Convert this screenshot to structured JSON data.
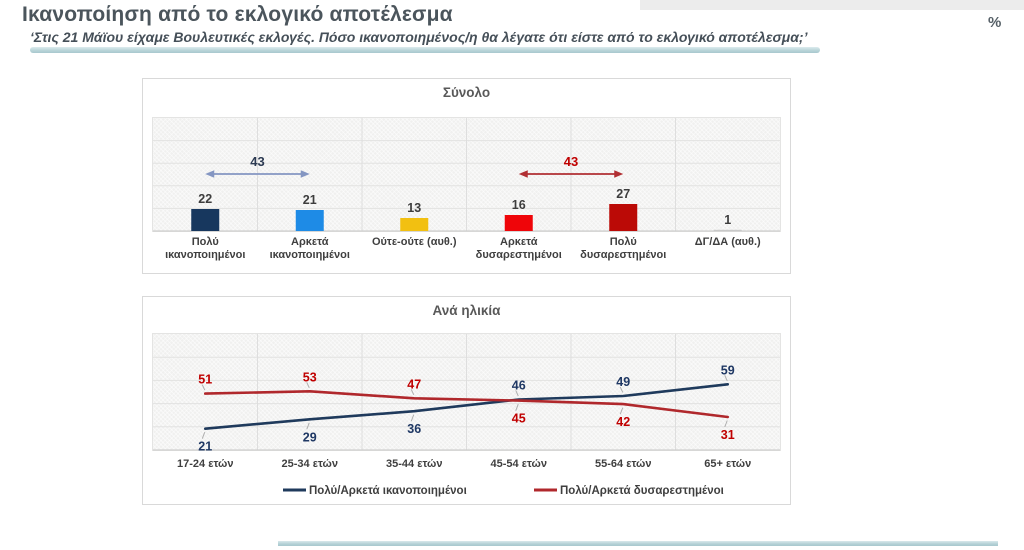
{
  "header": {
    "title": "Ικανοποίηση από το εκλογικό αποτέλεσμα",
    "subtitle": "‘Στις 21 Μάϊου είχαμε Βουλευτικές εκλογές. Πόσο ικανοποιημένος/η θα λέγατε ότι είστε από το εκλογικό αποτέλεσμα;’",
    "unit_symbol": "%"
  },
  "colors": {
    "accent_teal": "#aecdd3",
    "panel_border": "#d9d9d9",
    "plot_background": "#f0f0ef",
    "gridline": "#e2e2e1",
    "column_separator": "#dedede",
    "baseline": "#cfcfcf",
    "value_label": "#3d3d3d",
    "category_label": "#3f3f3f",
    "panel_title": "#595959",
    "leader_line": "#aeaeae"
  },
  "chart_data": [
    {
      "type": "bar",
      "title": "Σύνολο",
      "categories": [
        [
          "Πολύ",
          "ικανοποιημένοι"
        ],
        [
          "Αρκετά",
          "ικανοποιημένοι"
        ],
        [
          "Ούτε-ούτε (αυθ.)"
        ],
        [
          "Αρκετά",
          "δυσαρεστημένοι"
        ],
        [
          "Πολύ",
          "δυσαρεστημένοι"
        ],
        [
          "ΔΓ/ΔΑ (αυθ.)"
        ]
      ],
      "values": [
        22,
        21,
        13,
        16,
        27,
        1
      ],
      "bar_colors": [
        "#17375e",
        "#1e8be6",
        "#f2c011",
        "#ef0509",
        "#bb0a06",
        "#c9c9c9"
      ],
      "axis_labels_visible": false,
      "grid": true,
      "annotations": [
        {
          "label": "43",
          "from_category": 0,
          "to_category": 1,
          "arrow_color": "#8496c2",
          "label_color": "#2c3a52"
        },
        {
          "label": "43",
          "from_category": 3,
          "to_category": 4,
          "arrow_color": "#b12f33",
          "label_color": "#c00000"
        }
      ]
    },
    {
      "type": "line",
      "title": "Ανά ηλικία",
      "categories": [
        "17-24 ετών",
        "25-34 ετών",
        "35-44 ετών",
        "45-54 ετών",
        "55-64 ετών",
        "65+ ετών"
      ],
      "series": [
        {
          "name": "Πολύ/Αρκετά ικανοποιημένοι",
          "color": "#1f3a5c",
          "label_color": "#1f3864",
          "values": [
            21,
            29,
            36,
            46,
            49,
            59
          ],
          "label_side": [
            "below",
            "below",
            "below",
            "above",
            "above",
            "above"
          ]
        },
        {
          "name": "Πολύ/Αρκετά δυσαρεστημένοι",
          "color": "#b0282c",
          "label_color": "#c00000",
          "values": [
            51,
            53,
            47,
            45,
            42,
            31
          ],
          "label_side": [
            "above",
            "above",
            "above",
            "below",
            "below",
            "below"
          ]
        }
      ],
      "legend_position": "bottom",
      "grid": true
    }
  ]
}
